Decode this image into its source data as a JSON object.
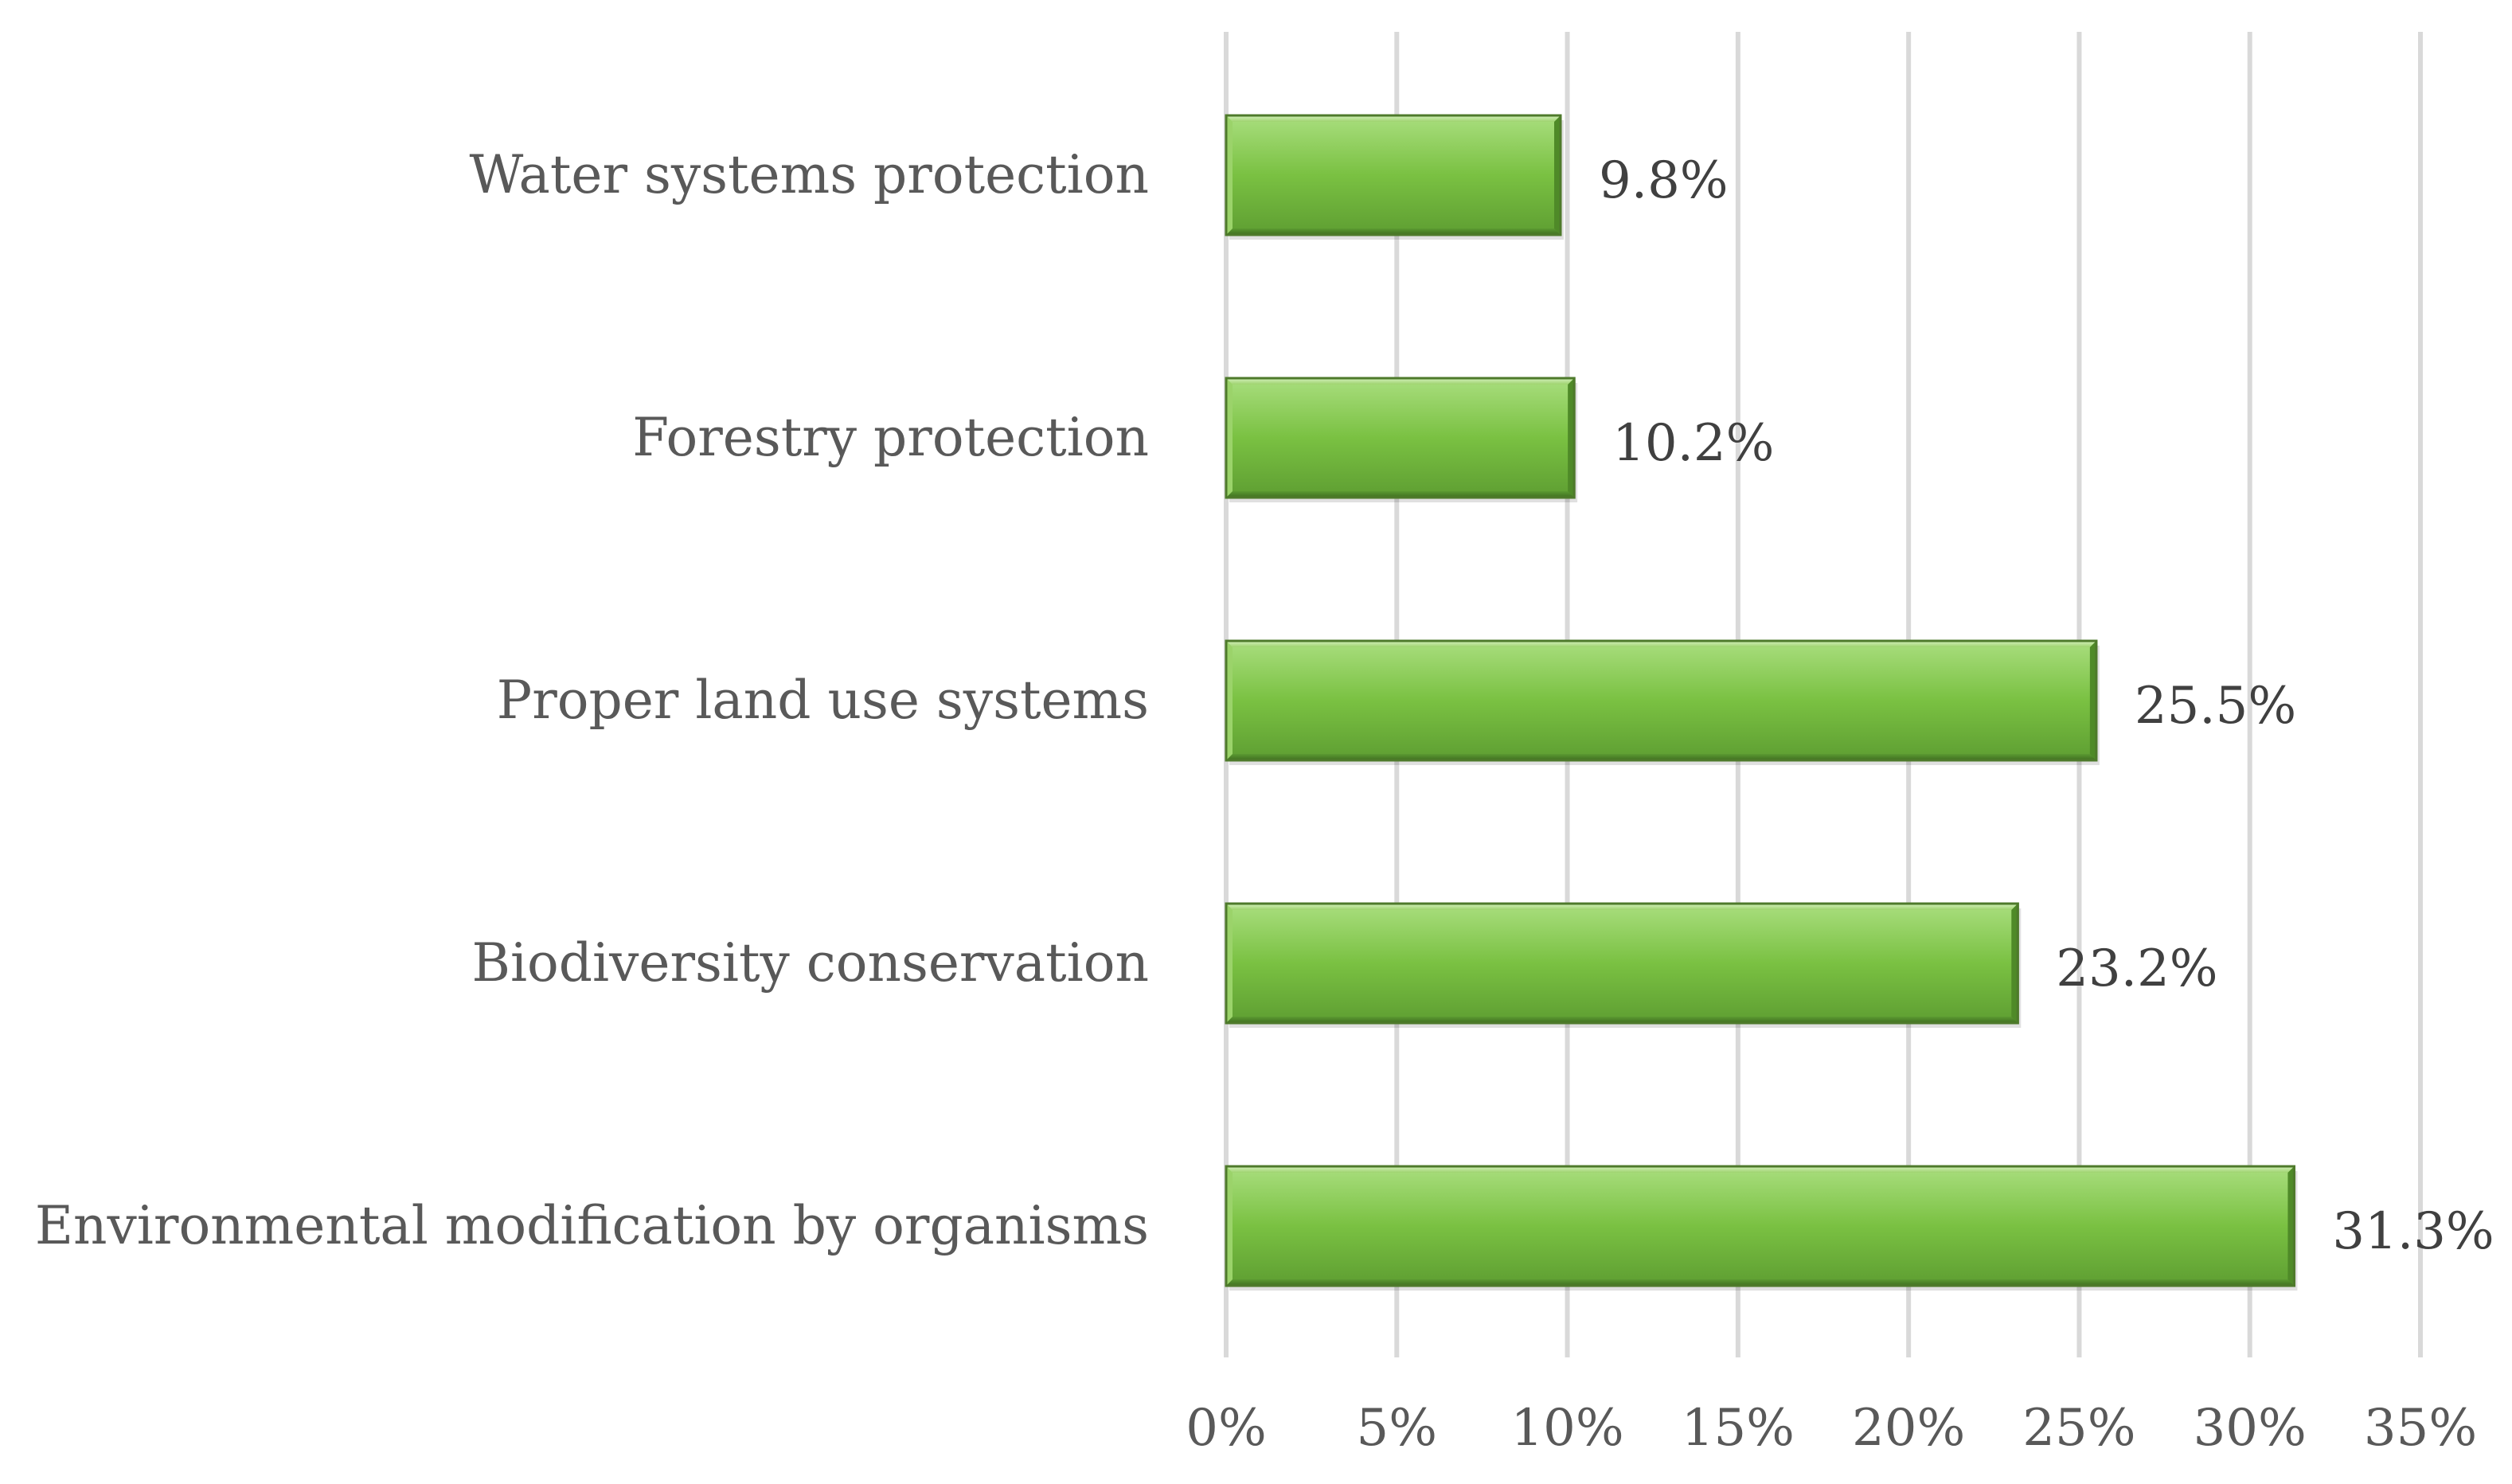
{
  "chart_data": {
    "type": "bar",
    "orientation": "horizontal",
    "categories": [
      "Water systems protection",
      "Forestry protection",
      "Proper land use systems",
      "Biodiversity conservation",
      "Environmental modification by organisms"
    ],
    "values": [
      9.8,
      10.2,
      25.5,
      23.2,
      31.3
    ],
    "data_labels": [
      "9.8%",
      "10.2%",
      "25.5%",
      "23.2%",
      "31.3%"
    ],
    "x_ticks": [
      "0%",
      "5%",
      "10%",
      "15%",
      "20%",
      "25%",
      "30%",
      "35%"
    ],
    "xlim": [
      0,
      35
    ],
    "x_tick_step": 5,
    "grid": "vertical",
    "legend": "none",
    "title": "",
    "xlabel": "",
    "ylabel": "",
    "bar_color": "#7AC142",
    "bar_border_color": "#4E7A2B",
    "gridline_color": "#D9D9D9"
  }
}
